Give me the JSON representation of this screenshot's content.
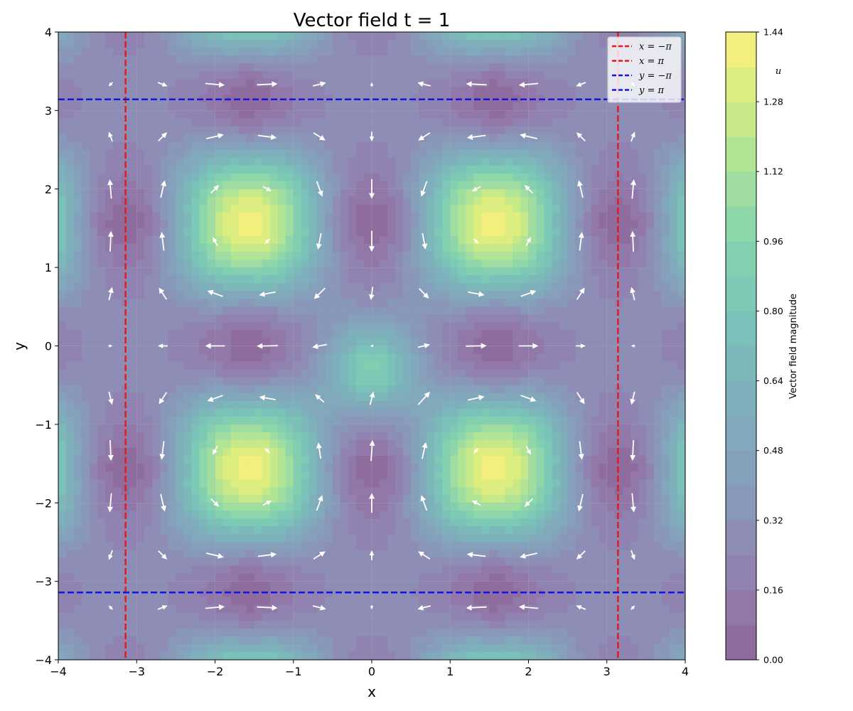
{
  "chart_data": {
    "type": "heatmap",
    "title": "Vector field t = 1",
    "xlabel": "x",
    "ylabel": "y",
    "xlim": [
      -4,
      4
    ],
    "ylim": [
      -4,
      4
    ],
    "xticks": [
      -4,
      -3,
      -2,
      -1,
      0,
      1,
      2,
      3,
      4
    ],
    "yticks": [
      -4,
      -3,
      -2,
      -1,
      0,
      1,
      2,
      3,
      4
    ],
    "xtick_labels": [
      "−4",
      "−3",
      "−2",
      "−1",
      "0",
      "1",
      "2",
      "3",
      "4"
    ],
    "ytick_labels": [
      "−4",
      "−3",
      "−2",
      "−1",
      "0",
      "1",
      "2",
      "3",
      "4"
    ],
    "grid": true,
    "field": {
      "description_terms": "magnitude peaks near (±2, ±2) and at edges x=±4,y=±2 and x=±2,y=±4; local bump near (0,-0.3)",
      "arrows_color": "#ffffff"
    },
    "reference_lines": [
      {
        "label": "x = −π",
        "orientation": "vertical",
        "value": -3.14159,
        "color": "#e41a1c"
      },
      {
        "label": "x = π",
        "orientation": "vertical",
        "value": 3.14159,
        "color": "#e41a1c"
      },
      {
        "label": "y = −π",
        "orientation": "horizontal",
        "value": -3.14159,
        "color": "#1515e0"
      },
      {
        "label": "y = π",
        "orientation": "horizontal",
        "value": 3.14159,
        "color": "#1515e0"
      }
    ],
    "legend": {
      "placement": "top-right",
      "entries": [
        {
          "math": "x = −π",
          "color": "#e41a1c"
        },
        {
          "math": "x = π",
          "color": "#e41a1c"
        },
        {
          "math": "y = −π",
          "color": "#1515e0"
        },
        {
          "math": "y = π",
          "color": "#1515e0"
        }
      ]
    },
    "colorbar": {
      "label": "Vector field magnitude",
      "overlay_text": "u",
      "range": [
        0.0,
        1.44
      ],
      "ticks": [
        0.0,
        0.16,
        0.32,
        0.48,
        0.64,
        0.8,
        0.96,
        1.12,
        1.28,
        1.44
      ],
      "tick_labels": [
        "0.00",
        "0.16",
        "0.32",
        "0.48",
        "0.64",
        "0.80",
        "0.96",
        "1.12",
        "1.28",
        "1.44"
      ],
      "levels": 18,
      "colormap": "viridis",
      "alpha": 0.6
    },
    "quiver": {
      "x": [
        -3.333,
        -2.667,
        -2.0,
        -1.333,
        -0.667,
        0.0,
        0.667,
        1.333,
        2.0,
        2.667,
        3.333
      ],
      "y": [
        -3.333,
        -2.667,
        -2.0,
        -1.333,
        -0.667,
        0.0,
        0.667,
        1.333,
        2.0,
        2.667,
        3.333
      ]
    }
  }
}
